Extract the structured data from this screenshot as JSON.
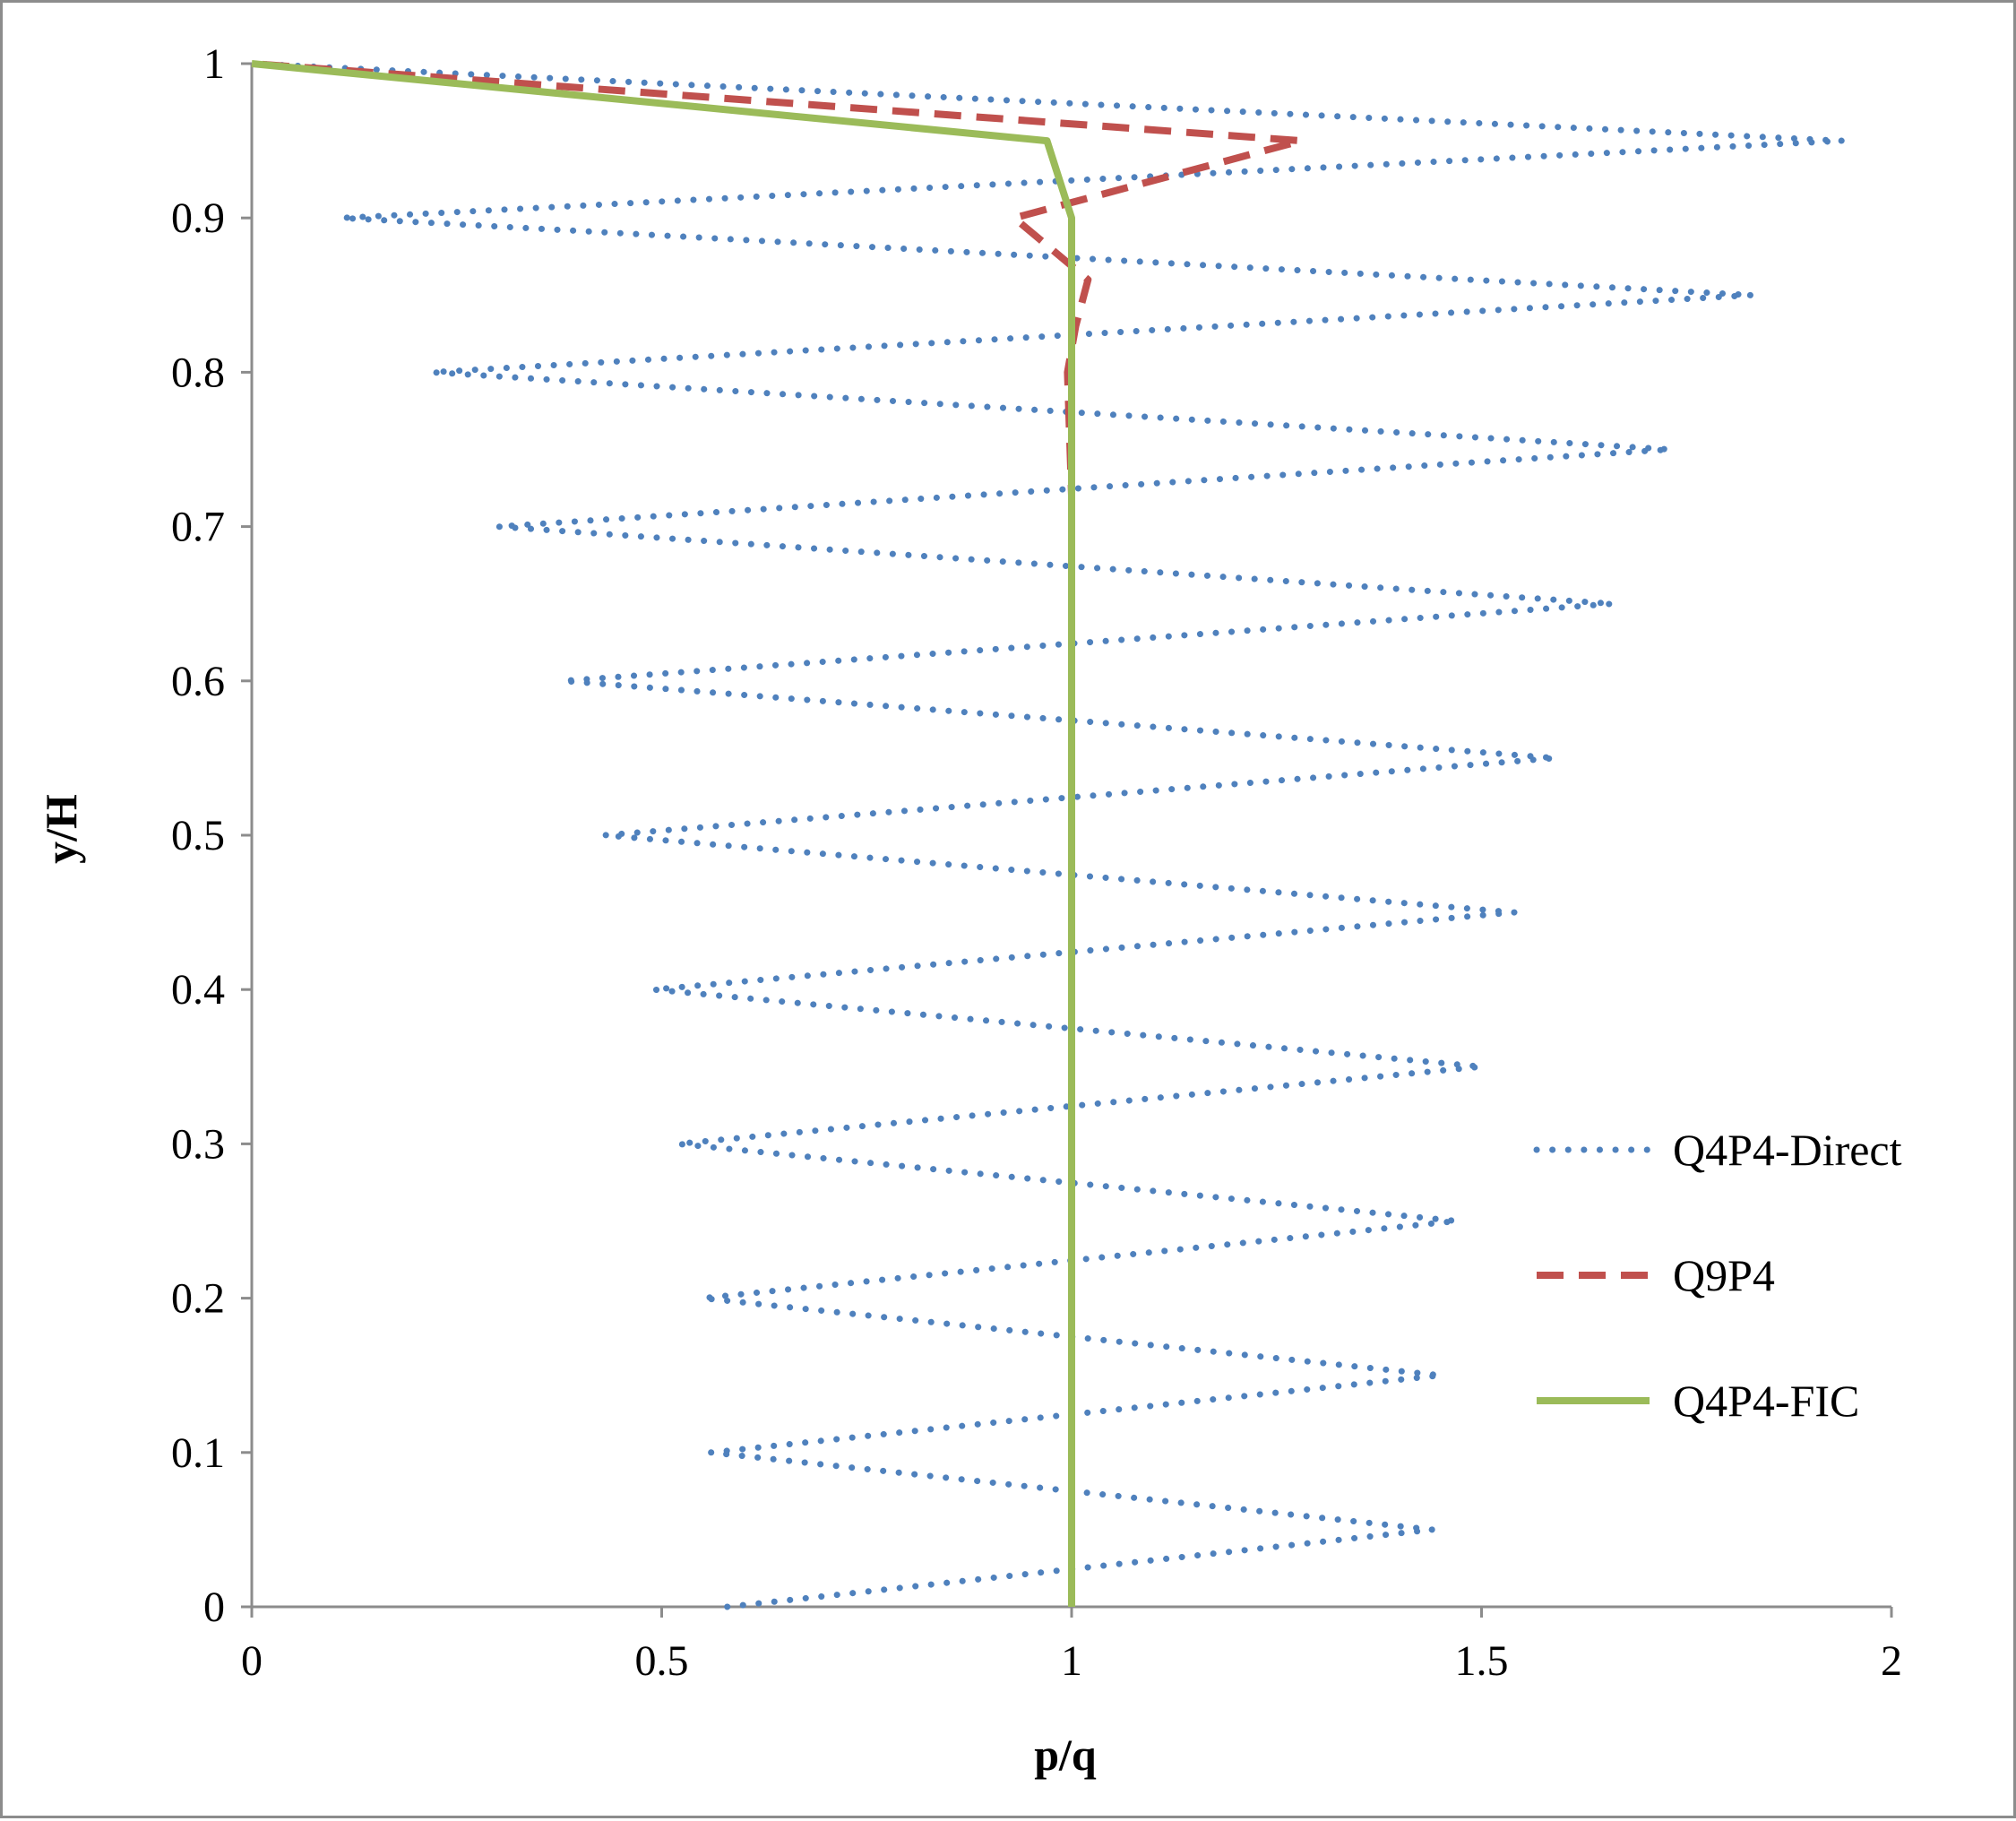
{
  "chart_data": {
    "type": "line",
    "title": "",
    "xlabel": "p/q",
    "ylabel": "y/H",
    "xlim": [
      0,
      2
    ],
    "ylim": [
      0,
      1
    ],
    "x_ticks": [
      "0",
      "0.5",
      "1",
      "1.5",
      "2"
    ],
    "y_ticks": [
      "0",
      "0.1",
      "0.2",
      "0.3",
      "0.4",
      "0.5",
      "0.6",
      "0.7",
      "0.8",
      "0.9",
      "1"
    ],
    "grid": false,
    "legend_position": "right",
    "series": [
      {
        "name": "Q4P4-Direct",
        "color": "#4f81bd",
        "style": "dotted",
        "x": [
          0.58,
          1.44,
          0.56,
          1.45,
          0.55,
          1.47,
          0.52,
          1.5,
          0.49,
          1.54,
          0.43,
          1.59,
          0.38,
          1.66,
          0.3,
          1.73,
          0.22,
          1.83,
          0.11,
          1.94,
          0.0
        ],
        "y": [
          0.0,
          0.05,
          0.1,
          0.15,
          0.2,
          0.25,
          0.3,
          0.35,
          0.4,
          0.45,
          0.5,
          0.55,
          0.6,
          0.65,
          0.7,
          0.75,
          0.8,
          0.85,
          0.9,
          0.95,
          1.0
        ]
      },
      {
        "name": "Q9P4",
        "color": "#c0504d",
        "style": "dashed",
        "x": [
          1.0,
          1.0,
          1.0,
          1.0,
          1.0,
          0.995,
          1.005,
          1.02,
          0.93,
          1.28,
          0.0
        ],
        "y": [
          0.0,
          0.2,
          0.4,
          0.6,
          0.72,
          0.8,
          0.83,
          0.86,
          0.9,
          0.95,
          1.0
        ]
      },
      {
        "name": "Q4P4-FIC",
        "color": "#9bbb59",
        "style": "solid",
        "x": [
          1.0,
          1.0,
          1.0,
          1.0,
          0.97,
          0.0
        ],
        "y": [
          0.0,
          0.5,
          0.8,
          0.9,
          0.95,
          1.0
        ]
      }
    ]
  }
}
